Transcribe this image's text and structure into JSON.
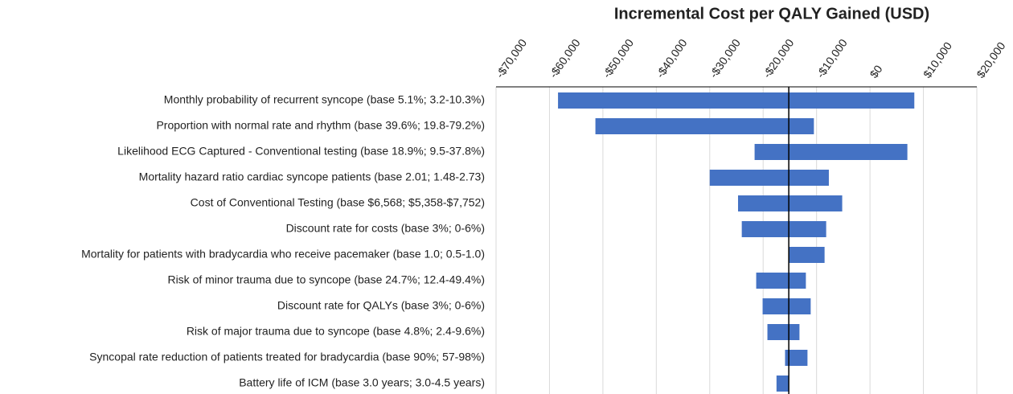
{
  "chart_data": {
    "type": "tornado",
    "title": "Incremental Cost per QALY Gained (USD)",
    "categories": [
      "Monthly probability of recurrent syncope (base 5.1%; 3.2-10.3%)",
      "Proportion with normal rate and rhythm (base 39.6%; 19.8-79.2%)",
      "Likelihood ECG Captured - Conventional testing (base 18.9%; 9.5-37.8%)",
      "Mortality hazard ratio cardiac syncope patients (base 2.01; 1.48-2.73)",
      "Cost of Conventional Testing (base $6,568; $5,358-$7,752)",
      "Discount rate for costs (base 3%; 0-6%)",
      "Mortality for patients with bradycardia who receive pacemaker (base 1.0; 0.5-1.0)",
      "Risk of minor trauma due to syncope (base 24.7%; 12.4-49.4%)",
      "Discount rate for QALYs (base 3%; 0-6%)",
      "Risk of major trauma due to syncope (base 4.8%; 2.4-9.6%)",
      "Syncopal rate reduction of patients treated for bradycardia (base 90%; 57-98%)",
      "Battery life of ICM (base 3.0 years; 3.0-4.5 years)"
    ],
    "base": -15200,
    "low": [
      -58400,
      -51400,
      -21600,
      -30000,
      -24700,
      -24000,
      -15200,
      -21300,
      -20100,
      -19200,
      -15900,
      -17500
    ],
    "high": [
      8300,
      -10500,
      7000,
      -7700,
      -5200,
      -8200,
      -8500,
      -12000,
      -11100,
      -13200,
      -11700,
      -15200
    ],
    "color": "#4472c4",
    "xlim": [
      -70000,
      20000
    ],
    "xticks": [
      {
        "value": -70000,
        "label": "-$70,000"
      },
      {
        "value": -60000,
        "label": "-$60,000"
      },
      {
        "value": -50000,
        "label": "-$50,000"
      },
      {
        "value": -40000,
        "label": "-$40,000"
      },
      {
        "value": -30000,
        "label": "-$30,000"
      },
      {
        "value": -20000,
        "label": "-$20,000"
      },
      {
        "value": -10000,
        "label": "-$10,000"
      },
      {
        "value": 0,
        "label": "$0"
      },
      {
        "value": 10000,
        "label": "$10,000"
      },
      {
        "value": 20000,
        "label": "$20,000"
      }
    ],
    "grid": true
  }
}
